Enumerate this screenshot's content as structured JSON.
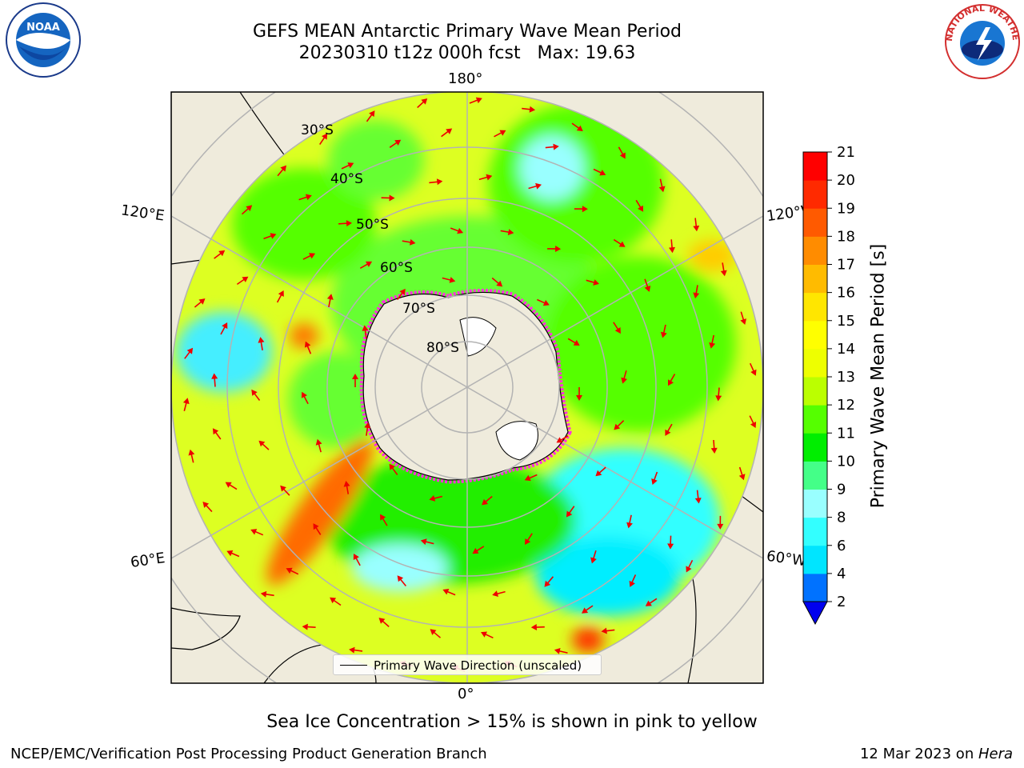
{
  "title_line1": "GEFS MEAN Antarctic Primary Wave Mean Period",
  "title_line2": "20230310 t12z 000h fcst   Max: 19.63",
  "lon_labels": {
    "top": "180°",
    "bottom": "0°",
    "upper_left": "120°E",
    "upper_right": "120°W",
    "lower_left": "60°E",
    "lower_right": "60°W"
  },
  "lat_labels": [
    "30°S",
    "40°S",
    "50°S",
    "60°S",
    "70°S",
    "80°S"
  ],
  "legend_label": "Primary Wave Direction (unscaled)",
  "colorbar": {
    "label": "Primary Wave Mean Period [s]",
    "ticks": [
      "2",
      "4",
      "6",
      "8",
      "9",
      "10",
      "11",
      "12",
      "13",
      "14",
      "15",
      "16",
      "17",
      "18",
      "19",
      "20",
      "21"
    ],
    "colors": [
      "#0072ff",
      "#00e5ff",
      "#33ffff",
      "#99ffff",
      "#44ff88",
      "#00ee00",
      "#55ff00",
      "#bbff00",
      "#eeff00",
      "#ffff00",
      "#ffe600",
      "#ffbb00",
      "#ff8c00",
      "#ff5a00",
      "#ff2a00",
      "#ff0000"
    ],
    "extend_color": "#0000ee"
  },
  "colors": {
    "land": "#efebdc",
    "arrow": "#ee0000",
    "ice_pink": "#ff33dd",
    "grid": "#b3b3b3"
  },
  "sea_ice_note": "Sea Ice Concentration > 15% is shown in pink to yellow",
  "footer_left": "NCEP/EMC/Verification Post Processing Product Generation Branch",
  "footer_right_date": "12 Mar 2023 on ",
  "footer_right_host": "Hera",
  "logos": {
    "noaa": "NOAA",
    "nws": "NATIONAL WEATHER SERVICE"
  }
}
